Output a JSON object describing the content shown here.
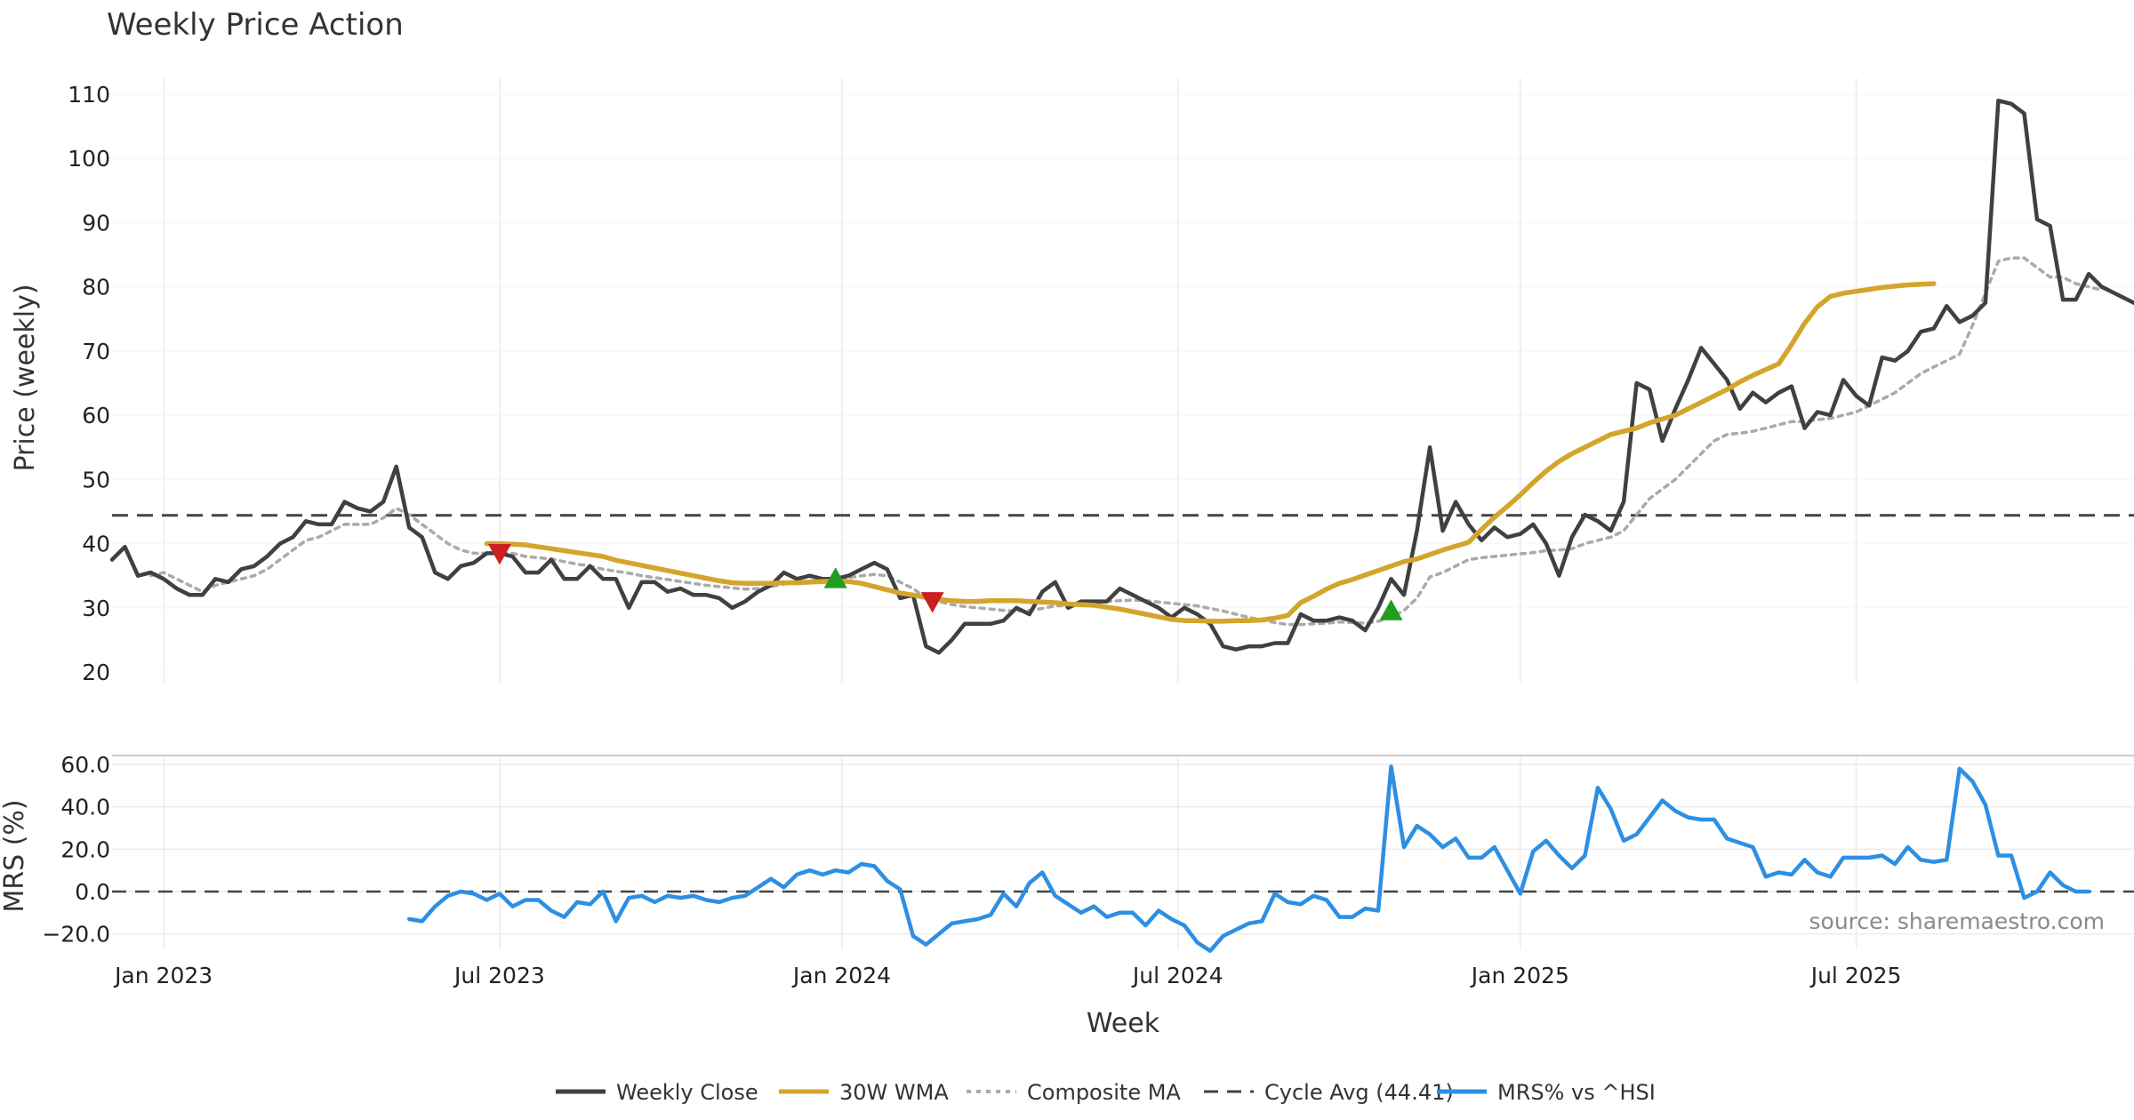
{
  "chart_data": {
    "type": "line",
    "title": "Weekly Price Action",
    "xlabel": "Week",
    "ylabel_top": "Price (weekly)",
    "ylabel_bottom": "MRS (%)",
    "source": "source: sharemaestro.com",
    "top_ylim": [
      18,
      115
    ],
    "top_yticks": [
      "20",
      "30",
      "40",
      "50",
      "60",
      "70",
      "80",
      "90",
      "100",
      "110"
    ],
    "bottom_ylim": [
      -25,
      62
    ],
    "bottom_yticks": [
      "−20.0",
      "0.0",
      "20.0",
      "40.0",
      "60.0"
    ],
    "x_ticks": [
      {
        "label": "Jan 2023",
        "week": 4
      },
      {
        "label": "Jul 2023",
        "week": 30
      },
      {
        "label": "Jan 2024",
        "week": 56.5
      },
      {
        "label": "Jul 2024",
        "week": 82.5
      },
      {
        "label": "Jan 2025",
        "week": 109
      },
      {
        "label": "Jul 2025",
        "week": 135
      }
    ],
    "x_range": [
      0,
      156.5
    ],
    "cycle_avg": 44.41,
    "series": [
      {
        "name": "Weekly Close",
        "color": "#404040",
        "start_week": 0,
        "values": [
          37.5,
          39.5,
          35,
          35.5,
          34.5,
          33,
          32,
          32,
          34.5,
          34,
          36,
          36.5,
          38,
          40,
          41,
          43.5,
          43,
          43,
          46.5,
          45.5,
          45,
          46.5,
          52,
          42.5,
          41,
          35.5,
          34.5,
          36.5,
          37,
          38.5,
          38.5,
          38,
          35.5,
          35.5,
          37.5,
          34.5,
          34.5,
          36.5,
          34.5,
          34.5,
          30,
          34,
          34,
          32.5,
          33,
          32,
          32,
          31.5,
          30,
          31,
          32.5,
          33.5,
          35.5,
          34.5,
          35,
          34.5,
          34.5,
          35,
          36,
          37,
          36,
          31.5,
          32,
          24,
          23,
          25,
          27.5,
          27.5,
          27.5,
          28,
          30,
          29,
          32.5,
          34,
          30,
          31,
          31,
          31,
          33,
          32,
          31,
          30,
          28.5,
          30,
          29,
          27.5,
          24,
          23.5,
          24,
          24,
          24.5,
          24.5,
          29,
          28,
          28,
          28.5,
          28,
          26.5,
          30,
          34.5,
          32,
          42,
          55,
          42,
          46.5,
          43,
          40.5,
          42.5,
          41,
          41.5,
          43,
          40,
          35,
          41,
          44.5,
          43.5,
          42,
          46.5,
          65,
          64,
          56,
          61,
          65.5,
          70.5,
          68,
          65.5,
          61,
          63.5,
          62,
          63.5,
          64.5,
          58,
          60.5,
          60,
          65.5,
          63,
          61.5,
          69,
          68.5,
          70,
          73,
          73.5,
          77,
          74.5,
          75.5,
          77.5,
          109,
          108.5,
          107,
          90.5,
          89.5,
          78,
          78,
          82,
          80,
          79,
          78,
          77
        ]
      },
      {
        "name": "30W WMA",
        "color": "#d4a52c",
        "start_week": 29,
        "values": [
          40,
          40,
          39.9,
          39.8,
          39.5,
          39.2,
          38.9,
          38.6,
          38.3,
          38,
          37.4,
          37,
          36.6,
          36.2,
          35.8,
          35.4,
          35,
          34.6,
          34.2,
          33.9,
          33.8,
          33.8,
          33.8,
          33.9,
          33.9,
          34,
          34.1,
          34.2,
          34.1,
          33.8,
          33.3,
          32.8,
          32.3,
          32,
          31.6,
          31.3,
          31.1,
          31,
          31,
          31.1,
          31.1,
          31.1,
          31,
          30.9,
          30.8,
          30.6,
          30.5,
          30.4,
          30.1,
          29.8,
          29.4,
          29,
          28.6,
          28.2,
          28,
          28,
          27.9,
          27.9,
          28,
          28,
          28.1,
          28.4,
          28.8,
          30.8,
          31.8,
          32.9,
          33.8,
          34.4,
          35.1,
          35.8,
          36.5,
          37.2,
          37.6,
          38.3,
          39,
          39.6,
          40.2,
          42.2,
          44.1,
          45.8,
          47.6,
          49.5,
          51.3,
          52.8,
          54,
          55,
          56,
          57,
          57.5,
          58,
          58.8,
          59.4,
          60,
          61,
          62,
          63,
          64,
          65.2,
          66.2,
          67.1,
          68,
          71,
          74.3,
          76.9,
          78.5,
          79,
          79.3,
          79.6,
          79.9,
          80.1,
          80.3,
          80.4,
          80.5
        ]
      },
      {
        "name": "Composite MA",
        "color": "#aaaaaa",
        "start_week": 0,
        "values": [
          null,
          null,
          null,
          35,
          35.5,
          34.5,
          33.5,
          32.5,
          33.5,
          34,
          34.5,
          35,
          36,
          37.5,
          39,
          40.5,
          41,
          42,
          43,
          43,
          43,
          44,
          45.5,
          44.5,
          43,
          41.5,
          40,
          39,
          38.5,
          38.5,
          38.5,
          38.5,
          38,
          37.8,
          37.6,
          37.2,
          36.8,
          36.5,
          36,
          35.7,
          35.4,
          35,
          34.7,
          34.4,
          34.1,
          33.8,
          33.5,
          33.3,
          33.1,
          32.9,
          33,
          33.3,
          33.7,
          34,
          34.2,
          34.4,
          34.5,
          34.7,
          35,
          35.2,
          35,
          34,
          33,
          31.5,
          31,
          30.5,
          30.2,
          30,
          29.8,
          29.6,
          29.5,
          29.6,
          29.9,
          30.3,
          30.4,
          30.6,
          30.8,
          31,
          31.1,
          31.2,
          31.1,
          30.9,
          30.7,
          30.5,
          30.3,
          29.9,
          29.5,
          29,
          28.5,
          28.1,
          27.7,
          27.4,
          27.4,
          27.5,
          27.6,
          27.8,
          27.7,
          27.6,
          27.9,
          28.5,
          29.6,
          31.5,
          34.8,
          35.5,
          36.5,
          37.5,
          37.8,
          38,
          38.2,
          38.4,
          38.6,
          38.9,
          39,
          39.2,
          40,
          40.5,
          41,
          42,
          44.5,
          47,
          48.5,
          50,
          52,
          54,
          56,
          57,
          57.2,
          57.5,
          58,
          58.5,
          59,
          59,
          59.3,
          59.5,
          60,
          60.5,
          61.5,
          62.5,
          63.5,
          65,
          66.5,
          67.5,
          68.5,
          69.5,
          74,
          79,
          84,
          84.5,
          84.5,
          83,
          81.5,
          81.5,
          80.5,
          80,
          79.5
        ]
      },
      {
        "name": "MRS% vs ^HSI",
        "color": "#2d8fe3",
        "start_week": 23,
        "values": [
          -13,
          -14,
          -7,
          -2,
          0,
          -1,
          -4,
          -1,
          -7,
          -4,
          -4,
          -9,
          -12,
          -5,
          -6,
          0,
          -14,
          -3,
          -2,
          -5,
          -2,
          -3,
          -2,
          -4,
          -5,
          -3,
          -2,
          2,
          6,
          2,
          8,
          10,
          8,
          10,
          9,
          13,
          12,
          5,
          1,
          -21,
          -25,
          -20,
          -15,
          -14,
          -13,
          -11,
          -1,
          -7,
          4,
          9,
          -2,
          -6,
          -10,
          -7,
          -12,
          -10,
          -10,
          -16,
          -9,
          -13,
          -16,
          -24,
          -28,
          -21,
          -18,
          -15,
          -14,
          -1,
          -5,
          -6,
          -2,
          -4,
          -12,
          -12,
          -8,
          -9,
          59,
          21,
          31,
          27,
          21,
          25,
          16,
          16,
          21,
          10,
          -1,
          19,
          24,
          17,
          11,
          17,
          49,
          39,
          24,
          27,
          35,
          43,
          38,
          35,
          34,
          34,
          25,
          23,
          21,
          7,
          9,
          8,
          15,
          9,
          7,
          16,
          16,
          16,
          17,
          13,
          21,
          15,
          14,
          15,
          58,
          52,
          41,
          17,
          17,
          -3,
          0,
          9,
          3,
          0,
          0
        ]
      }
    ],
    "legend": [
      {
        "label": "Weekly Close",
        "color": "#404040",
        "style": "solid"
      },
      {
        "label": "30W WMA",
        "color": "#d4a52c",
        "style": "solid"
      },
      {
        "label": "Composite MA",
        "color": "#aaaaaa",
        "style": "dotted"
      },
      {
        "label": "Cycle Avg (44.41)",
        "color": "#444444",
        "style": "dashed"
      },
      {
        "label": "MRS% vs ^HSI",
        "color": "#2d8fe3",
        "style": "solid"
      }
    ],
    "signals": [
      {
        "type": "sell",
        "week": 30,
        "price": 38.5,
        "color": "#cc1f1f"
      },
      {
        "type": "buy",
        "week": 56,
        "price": 34.5,
        "color": "#1f9e1f"
      },
      {
        "type": "sell",
        "week": 63.5,
        "price": 31,
        "color": "#cc1f1f"
      },
      {
        "type": "buy",
        "week": 99,
        "price": 29.5,
        "color": "#1f9e1f"
      }
    ]
  }
}
